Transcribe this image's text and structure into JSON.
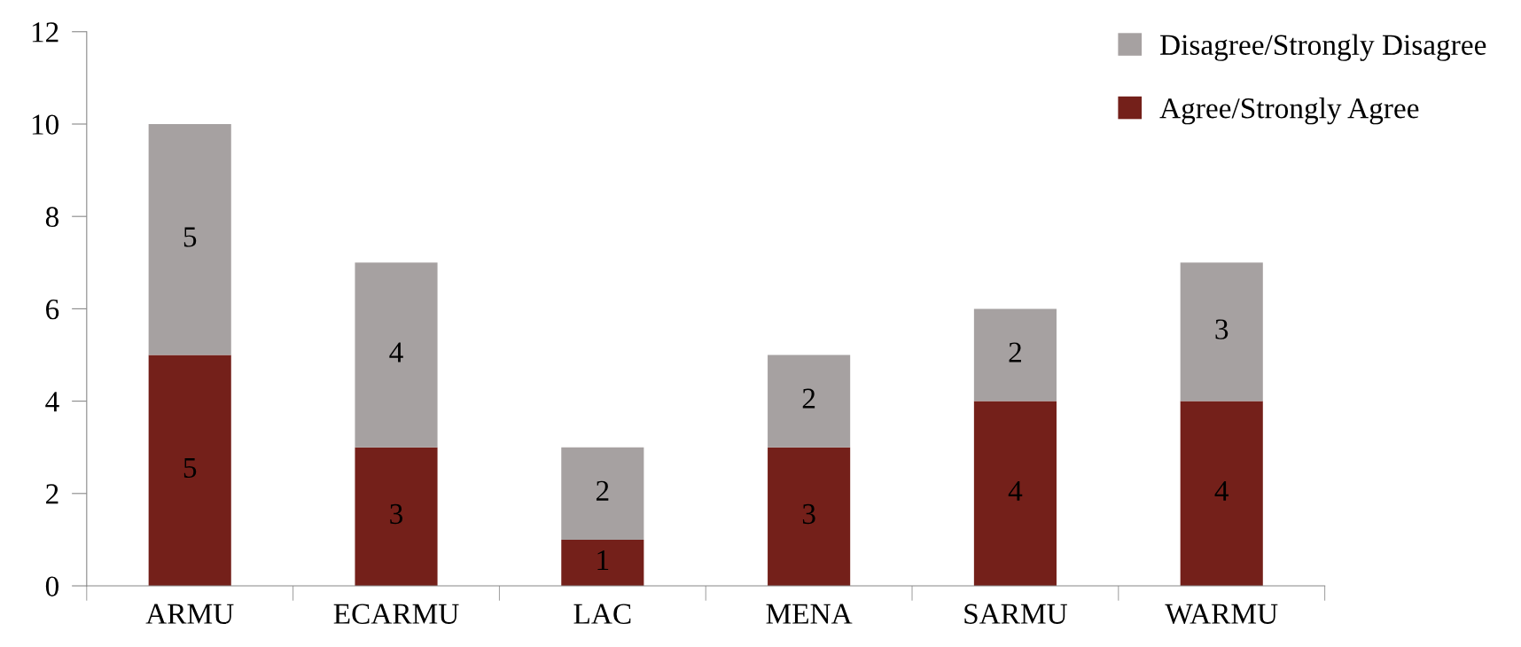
{
  "chart_data": {
    "type": "bar",
    "stacked": true,
    "categories": [
      "ARMU",
      "ECARMU",
      "LAC",
      "MENA",
      "SARMU",
      "WARMU"
    ],
    "series": [
      {
        "name": "Agree/Strongly Agree",
        "color": "#74201a",
        "values": [
          5,
          3,
          1,
          3,
          4,
          4
        ]
      },
      {
        "name": "Disagree/Strongly Disagree",
        "color": "#a6a1a1",
        "values": [
          5,
          4,
          2,
          2,
          2,
          3
        ]
      }
    ],
    "ylim": [
      0,
      12
    ],
    "yticks": [
      0,
      2,
      4,
      6,
      8,
      10,
      12
    ],
    "data_labels": true,
    "grid": false,
    "legend": "top right"
  }
}
